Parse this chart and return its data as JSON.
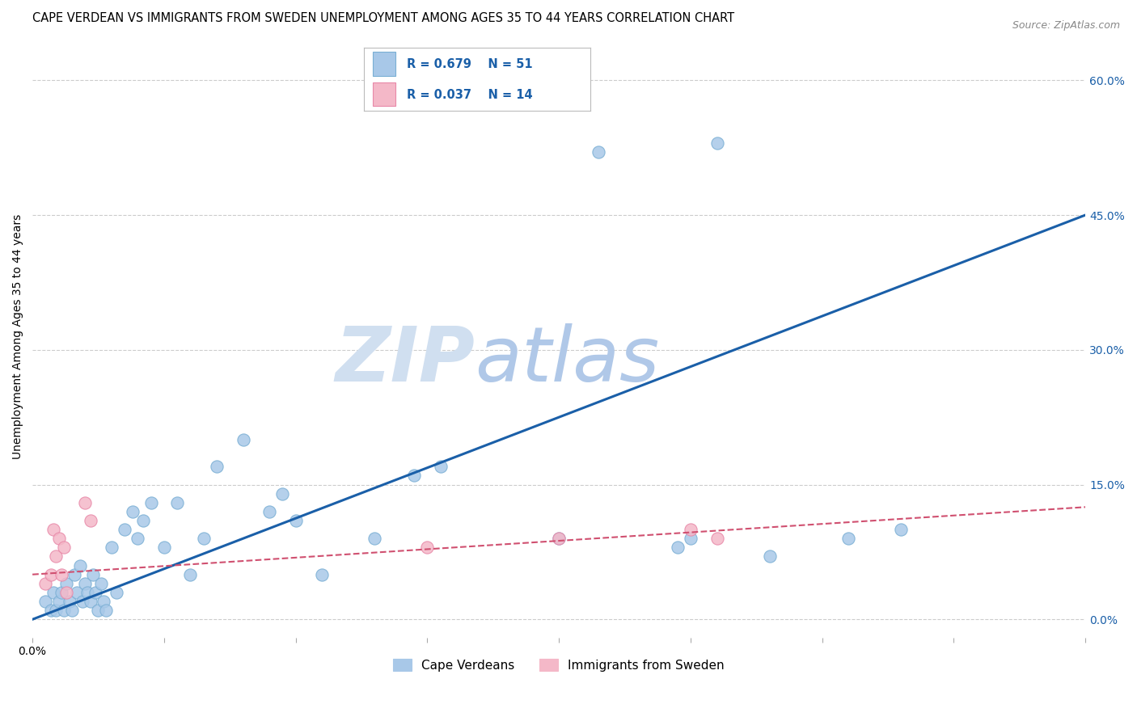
{
  "title": "CAPE VERDEAN VS IMMIGRANTS FROM SWEDEN UNEMPLOYMENT AMONG AGES 35 TO 44 YEARS CORRELATION CHART",
  "source": "Source: ZipAtlas.com",
  "ylabel": "Unemployment Among Ages 35 to 44 years",
  "xlim": [
    0.0,
    0.4
  ],
  "ylim": [
    -0.02,
    0.65
  ],
  "x_ticks": [
    0.0,
    0.05,
    0.1,
    0.15,
    0.2,
    0.25,
    0.3,
    0.35,
    0.4
  ],
  "x_tick_labels_show": {
    "0.0": "0.0%"
  },
  "y_ticks_right": [
    0.0,
    0.15,
    0.3,
    0.45,
    0.6
  ],
  "y_tick_labels_right": [
    "0.0%",
    "15.0%",
    "30.0%",
    "45.0%",
    "60.0%"
  ],
  "blue_scatter_x": [
    0.005,
    0.007,
    0.008,
    0.009,
    0.01,
    0.011,
    0.012,
    0.013,
    0.014,
    0.015,
    0.016,
    0.017,
    0.018,
    0.019,
    0.02,
    0.021,
    0.022,
    0.023,
    0.024,
    0.025,
    0.026,
    0.027,
    0.028,
    0.03,
    0.032,
    0.035,
    0.038,
    0.04,
    0.042,
    0.045,
    0.05,
    0.055,
    0.06,
    0.065,
    0.07,
    0.08,
    0.09,
    0.095,
    0.1,
    0.11,
    0.13,
    0.145,
    0.155,
    0.2,
    0.215,
    0.245,
    0.25,
    0.26,
    0.28,
    0.31,
    0.33
  ],
  "blue_scatter_y": [
    0.02,
    0.01,
    0.03,
    0.01,
    0.02,
    0.03,
    0.01,
    0.04,
    0.02,
    0.01,
    0.05,
    0.03,
    0.06,
    0.02,
    0.04,
    0.03,
    0.02,
    0.05,
    0.03,
    0.01,
    0.04,
    0.02,
    0.01,
    0.08,
    0.03,
    0.1,
    0.12,
    0.09,
    0.11,
    0.13,
    0.08,
    0.13,
    0.05,
    0.09,
    0.17,
    0.2,
    0.12,
    0.14,
    0.11,
    0.05,
    0.09,
    0.16,
    0.17,
    0.09,
    0.52,
    0.08,
    0.09,
    0.53,
    0.07,
    0.09,
    0.1
  ],
  "pink_scatter_x": [
    0.005,
    0.007,
    0.008,
    0.009,
    0.01,
    0.011,
    0.012,
    0.013,
    0.02,
    0.022,
    0.15,
    0.2,
    0.25,
    0.26
  ],
  "pink_scatter_y": [
    0.04,
    0.05,
    0.1,
    0.07,
    0.09,
    0.05,
    0.08,
    0.03,
    0.13,
    0.11,
    0.08,
    0.09,
    0.1,
    0.09
  ],
  "blue_line_x": [
    0.0,
    0.4
  ],
  "blue_line_y": [
    0.0,
    0.45
  ],
  "pink_line_x": [
    0.0,
    0.4
  ],
  "pink_line_y": [
    0.05,
    0.125
  ],
  "legend_R1": "R = 0.679",
  "legend_N1": "N = 51",
  "legend_R2": "R = 0.037",
  "legend_N2": "N = 14",
  "blue_color": "#a8c8e8",
  "blue_edge_color": "#7aafd4",
  "blue_line_color": "#1a5fa8",
  "pink_color": "#f4b8c8",
  "pink_edge_color": "#e888a8",
  "pink_line_color": "#d05070",
  "legend_text_color": "#1a5fa8",
  "watermark_zip_color": "#d0dff0",
  "watermark_atlas_color": "#b0c8e8",
  "background_color": "#ffffff",
  "grid_color": "#cccccc",
  "title_fontsize": 10.5,
  "label_fontsize": 10,
  "tick_fontsize": 10,
  "scatter_size": 120,
  "legend_label1": "Cape Verdeans",
  "legend_label2": "Immigrants from Sweden"
}
